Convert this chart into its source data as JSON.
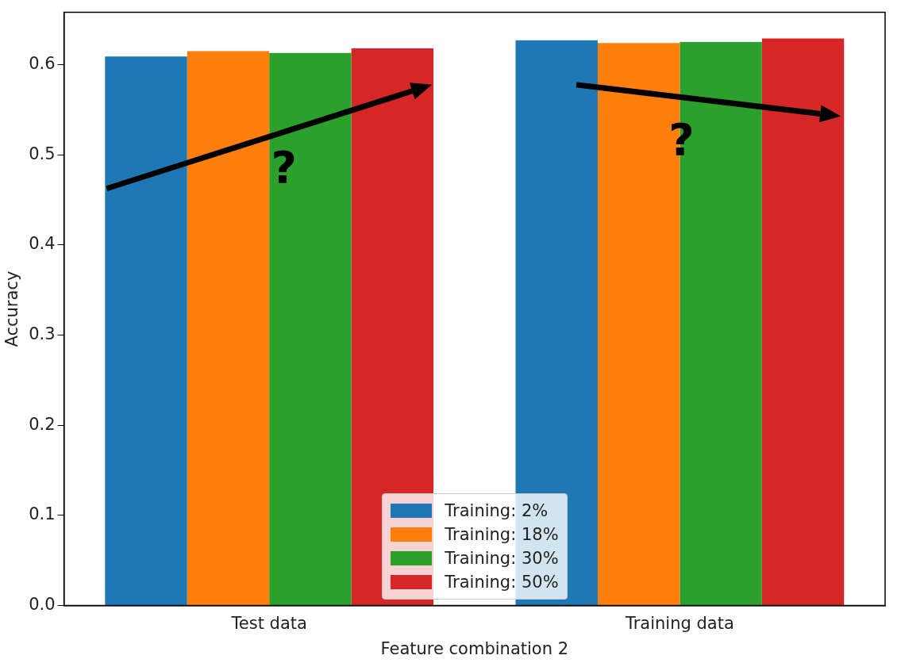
{
  "chart_data": {
    "type": "bar",
    "xlabel": "Feature combination 2",
    "ylabel": "Accuracy",
    "categories": [
      "Test data",
      "Training data"
    ],
    "series": [
      {
        "name": "Training: 2%",
        "color": "#1f77b4",
        "values": [
          0.609,
          0.627
        ]
      },
      {
        "name": "Training: 18%",
        "color": "#ff7f0e",
        "values": [
          0.615,
          0.624
        ]
      },
      {
        "name": "Training: 30%",
        "color": "#2ca02c",
        "values": [
          0.613,
          0.625
        ]
      },
      {
        "name": "Training: 50%",
        "color": "#d62728",
        "values": [
          0.618,
          0.629
        ]
      }
    ],
    "ylim": [
      0,
      0.658
    ],
    "yticks": [
      {
        "value": 0,
        "label": "0.0"
      },
      0.1,
      0.2,
      0.3,
      0.4,
      0.5,
      0.6
    ],
    "annotations": [
      "?",
      "?"
    ],
    "grid": false,
    "legend": "bottom"
  }
}
